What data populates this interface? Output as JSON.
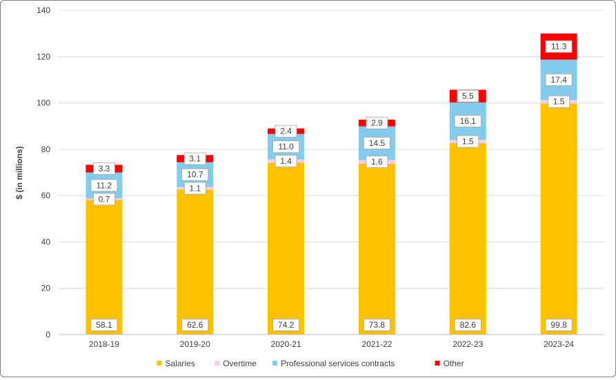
{
  "chart_data": {
    "type": "bar",
    "stacked": true,
    "categories": [
      "2018-19",
      "2019-20",
      "2020-21",
      "2021-22",
      "2022-23",
      "2023-24"
    ],
    "series": [
      {
        "name": "Salaries",
        "color": "#FFC000",
        "values": [
          58.1,
          62.6,
          74.2,
          73.8,
          82.6,
          99.8
        ]
      },
      {
        "name": "Overtime",
        "color": "#F2CEEF",
        "values": [
          0.7,
          1.1,
          1.4,
          1.6,
          1.5,
          1.5
        ]
      },
      {
        "name": "Professional services contracts",
        "color": "#83CCEB",
        "values": [
          11.2,
          10.7,
          11.0,
          14.5,
          16.1,
          17.4
        ]
      },
      {
        "name": "Other",
        "color": "#FF0000",
        "values": [
          3.3,
          3.1,
          2.4,
          2.9,
          5.5,
          11.3
        ]
      }
    ],
    "ylabel": "$ (in millions)",
    "ylim": [
      0,
      140
    ],
    "yticks": [
      0,
      20,
      40,
      60,
      80,
      100,
      120,
      140
    ],
    "grid": true,
    "legend_position": "bottom"
  }
}
